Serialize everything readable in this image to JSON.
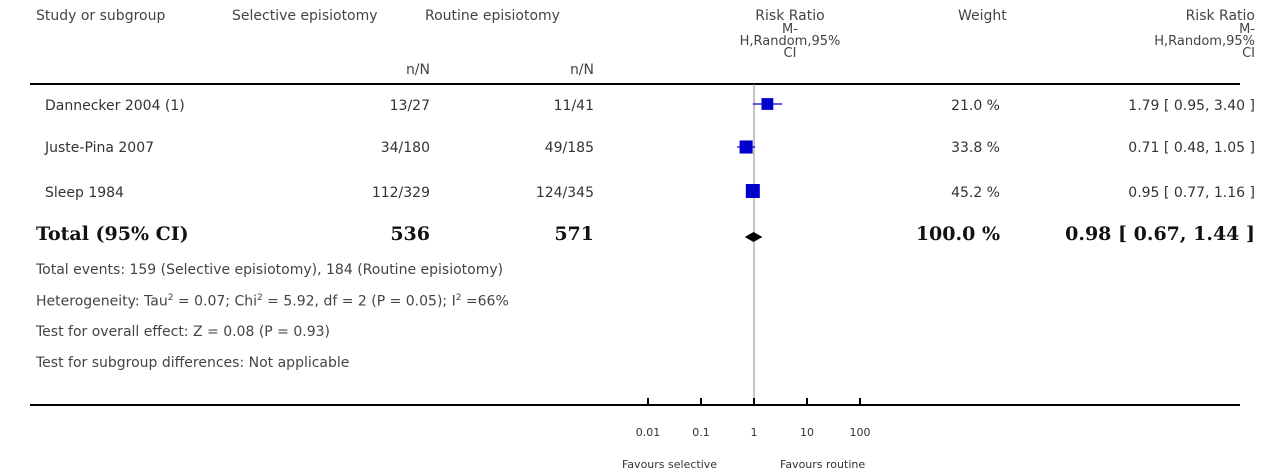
{
  "header": {
    "study": "Study or subgroup",
    "exp": "Selective episiotomy",
    "ctrl": "Routine episiotomy",
    "exp_sub": "n/N",
    "ctrl_sub": "n/N",
    "rr_plot_l1": "Risk Ratio",
    "rr_plot_l2": "M-",
    "rr_plot_l3": "H,Random,95%",
    "rr_plot_l4": "CI",
    "weight": "Weight",
    "rr_l1": "Risk Ratio",
    "rr_l2": "M-",
    "rr_l3": "H,Random,95%",
    "rr_l4": "CI"
  },
  "studies": [
    {
      "name": "Dannecker 2004 (1)",
      "exp": "13/27",
      "ctrl": "11/41",
      "weight": "21.0 %",
      "ci": "1.79 [ 0.95, 3.40 ]"
    },
    {
      "name": "Juste-Pina 2007",
      "exp": "34/180",
      "ctrl": "49/185",
      "weight": "33.8 %",
      "ci": "0.71 [ 0.48, 1.05 ]"
    },
    {
      "name": "Sleep 1984",
      "exp": "112/329",
      "ctrl": "124/345",
      "weight": "45.2 %",
      "ci": "0.95 [ 0.77, 1.16 ]"
    }
  ],
  "total": {
    "label": "Total (95% CI)",
    "exp": "536",
    "ctrl": "571",
    "weight": "100.0 %",
    "ci": "0.98 [ 0.67, 1.44 ]"
  },
  "notes": {
    "events": "Total events: 159 (Selective episiotomy), 184 (Routine episiotomy)",
    "het_a": "Heterogeneity: Tau",
    "het_sup1": "2",
    "het_b": " = 0.07; Chi",
    "het_sup2": "2",
    "het_c": " = 5.92, df = 2 (P = 0.05); I",
    "het_sup3": "2",
    "het_d": " =66%",
    "overall": "Test for overall effect: Z = 0.08 (P = 0.93)",
    "subgroup": "Test for subgroup differences: Not applicable"
  },
  "axis": {
    "tick_labels": [
      "0.01",
      "0.1",
      "1",
      "10",
      "100"
    ],
    "favours_left": "Favours selective",
    "favours_right": "Favours routine"
  },
  "colors": {
    "marker": "#0000cc",
    "diamond": "#000000"
  },
  "chart_data": {
    "type": "forest",
    "x_scale": "log",
    "xlim": [
      0.01,
      100
    ],
    "ticks": [
      0.01,
      0.1,
      1,
      10,
      100
    ],
    "reference": 1,
    "points": [
      {
        "name": "Dannecker 2004 (1)",
        "rr": 1.79,
        "lo": 0.95,
        "hi": 3.4,
        "weight": 21.0
      },
      {
        "name": "Juste-Pina 2007",
        "rr": 0.71,
        "lo": 0.48,
        "hi": 1.05,
        "weight": 33.8
      },
      {
        "name": "Sleep 1984",
        "rr": 0.95,
        "lo": 0.77,
        "hi": 1.16,
        "weight": 45.2
      }
    ],
    "pooled": {
      "rr": 0.98,
      "lo": 0.67,
      "hi": 1.44,
      "weight": 100.0
    }
  }
}
